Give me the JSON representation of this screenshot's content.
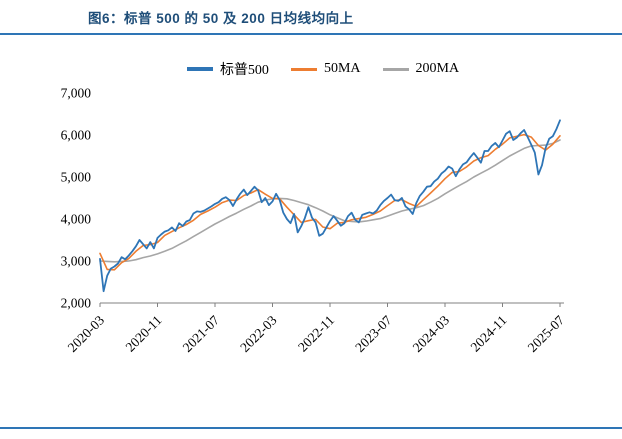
{
  "page": {
    "title": "图6：标普 500 的 50 及 200 日均线均向上",
    "accent_color": "#2e75b6",
    "title_color": "#1f4e79"
  },
  "legend": [
    {
      "key": "sp500",
      "label": "标普500",
      "color": "#2e75b6"
    },
    {
      "key": "50ma",
      "label": "50MA",
      "color": "#ed7d31"
    },
    {
      "key": "200ma",
      "label": "200MA",
      "color": "#a6a6a6"
    }
  ],
  "chart_data": {
    "type": "line",
    "title": "图6：标普 500 的 50 及 200 日均线均向上",
    "xlabel": "",
    "ylabel": "",
    "x_unit": "months since 2020-03",
    "x_tick_labels": [
      "2020-03",
      "2020-11",
      "2021-07",
      "2022-03",
      "2022-11",
      "2023-07",
      "2024-03",
      "2024-11",
      "2025-07"
    ],
    "x_tick_positions": [
      0,
      8,
      16,
      24,
      32,
      40,
      48,
      56,
      64
    ],
    "ylim": [
      2000,
      7000
    ],
    "y_ticks": [
      2000,
      3000,
      4000,
      5000,
      6000,
      7000
    ],
    "y_tick_labels": [
      "2,000",
      "3,000",
      "4,000",
      "5,000",
      "6,000",
      "7,000"
    ],
    "grid": false,
    "legend_position": "top",
    "series": [
      {
        "key": "sp500",
        "name": "标普500",
        "color": "#2e75b6",
        "width": 1.8,
        "x_start": 0,
        "x_step": 0.5,
        "values": [
          3050,
          2280,
          2650,
          2820,
          2870,
          2940,
          3090,
          3040,
          3130,
          3230,
          3350,
          3500,
          3400,
          3300,
          3450,
          3300,
          3550,
          3630,
          3700,
          3730,
          3800,
          3714,
          3900,
          3830,
          3940,
          3975,
          4130,
          4180,
          4170,
          4200,
          4250,
          4300,
          4360,
          4400,
          4480,
          4520,
          4450,
          4310,
          4470,
          4600,
          4700,
          4570,
          4670,
          4770,
          4680,
          4400,
          4500,
          4330,
          4420,
          4600,
          4450,
          4150,
          4000,
          3900,
          4120,
          3680,
          3830,
          4020,
          4280,
          4030,
          3920,
          3600,
          3650,
          3800,
          3950,
          4070,
          3960,
          3840,
          3900,
          4070,
          4150,
          3980,
          3920,
          4100,
          4130,
          4160,
          4130,
          4200,
          4330,
          4430,
          4500,
          4580,
          4450,
          4430,
          4500,
          4300,
          4230,
          4120,
          4380,
          4550,
          4650,
          4770,
          4780,
          4890,
          4960,
          5080,
          5150,
          5250,
          5200,
          5020,
          5180,
          5300,
          5350,
          5470,
          5570,
          5460,
          5340,
          5620,
          5620,
          5740,
          5810,
          5710,
          5870,
          6030,
          6090,
          5880,
          5940,
          6040,
          6120,
          5950,
          5770,
          5580,
          5060,
          5280,
          5690,
          5910,
          5970,
          6140,
          6350
        ]
      },
      {
        "key": "50ma",
        "name": "50MA",
        "color": "#ed7d31",
        "width": 1.6,
        "x_start": 0,
        "x_step": 1,
        "values": [
          3180,
          2800,
          2790,
          2960,
          3060,
          3230,
          3370,
          3390,
          3440,
          3610,
          3700,
          3790,
          3870,
          3970,
          4110,
          4190,
          4280,
          4390,
          4450,
          4440,
          4560,
          4620,
          4700,
          4590,
          4490,
          4480,
          4280,
          4100,
          3920,
          3960,
          3990,
          3810,
          3770,
          3900,
          3920,
          3980,
          4010,
          4040,
          4110,
          4190,
          4320,
          4440,
          4460,
          4370,
          4300,
          4460,
          4620,
          4780,
          4960,
          5110,
          5130,
          5240,
          5380,
          5460,
          5510,
          5660,
          5780,
          5930,
          5970,
          6010,
          5950,
          5750,
          5640,
          5780,
          5980
        ]
      },
      {
        "key": "200ma",
        "name": "200MA",
        "color": "#a6a6a6",
        "width": 1.6,
        "x_start": 0,
        "x_step": 1,
        "values": [
          3000,
          2990,
          2980,
          2990,
          3000,
          3030,
          3080,
          3120,
          3170,
          3230,
          3300,
          3390,
          3480,
          3580,
          3680,
          3780,
          3880,
          3970,
          4060,
          4140,
          4230,
          4310,
          4400,
          4450,
          4480,
          4490,
          4480,
          4440,
          4390,
          4340,
          4270,
          4190,
          4100,
          4030,
          3960,
          3940,
          3930,
          3950,
          3980,
          4010,
          4070,
          4130,
          4190,
          4230,
          4270,
          4320,
          4400,
          4490,
          4600,
          4700,
          4800,
          4890,
          5000,
          5090,
          5180,
          5280,
          5390,
          5500,
          5590,
          5680,
          5740,
          5750,
          5760,
          5800,
          5880
        ]
      }
    ]
  }
}
